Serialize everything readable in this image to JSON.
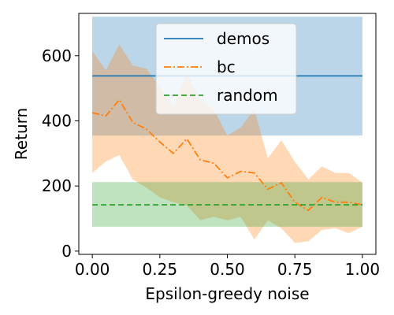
{
  "chart_data": {
    "type": "line",
    "title": "",
    "xlabel": "Epsilon-greedy noise",
    "ylabel": "Return",
    "xlim": [
      -0.05,
      1.05
    ],
    "ylim": [
      -10,
      730
    ],
    "xticks": [
      0.0,
      0.25,
      0.5,
      0.75,
      1.0
    ],
    "xtick_labels": [
      "0.00",
      "0.25",
      "0.50",
      "0.75",
      "1.00"
    ],
    "yticks": [
      0,
      200,
      400,
      600
    ],
    "ytick_labels": [
      "0",
      "200",
      "400",
      "600"
    ],
    "grid": false,
    "legend_position": "top-center",
    "series": [
      {
        "name": "demos",
        "style": "solid",
        "color": "#1f77b4",
        "band_color": "#1f77b4",
        "x": [
          0.0,
          1.0
        ],
        "y": [
          538,
          538
        ],
        "band_lower": [
          355,
          355
        ],
        "band_upper": [
          720,
          720
        ]
      },
      {
        "name": "bc",
        "style": "dashdot",
        "color": "#ff7f0e",
        "band_color": "#ff7f0e",
        "x": [
          0.0,
          0.05,
          0.1,
          0.15,
          0.2,
          0.25,
          0.3,
          0.35,
          0.4,
          0.45,
          0.5,
          0.55,
          0.6,
          0.65,
          0.7,
          0.75,
          0.8,
          0.85,
          0.9,
          0.95,
          1.0
        ],
        "y": [
          425,
          415,
          465,
          395,
          375,
          335,
          300,
          345,
          280,
          270,
          225,
          245,
          240,
          190,
          210,
          150,
          125,
          165,
          150,
          150,
          142
        ],
        "band_lower": [
          240,
          275,
          295,
          220,
          195,
          165,
          150,
          140,
          95,
          105,
          95,
          105,
          35,
          95,
          70,
          25,
          30,
          65,
          70,
          55,
          75
        ],
        "band_upper": [
          615,
          555,
          635,
          570,
          560,
          505,
          445,
          545,
          465,
          435,
          355,
          380,
          435,
          285,
          340,
          275,
          220,
          260,
          240,
          240,
          210
        ]
      },
      {
        "name": "random",
        "style": "dashed",
        "color": "#2ca02c",
        "band_color": "#2ca02c",
        "x": [
          0.0,
          1.0
        ],
        "y": [
          142,
          142
        ],
        "band_lower": [
          75,
          75
        ],
        "band_upper": [
          212,
          212
        ]
      }
    ]
  }
}
